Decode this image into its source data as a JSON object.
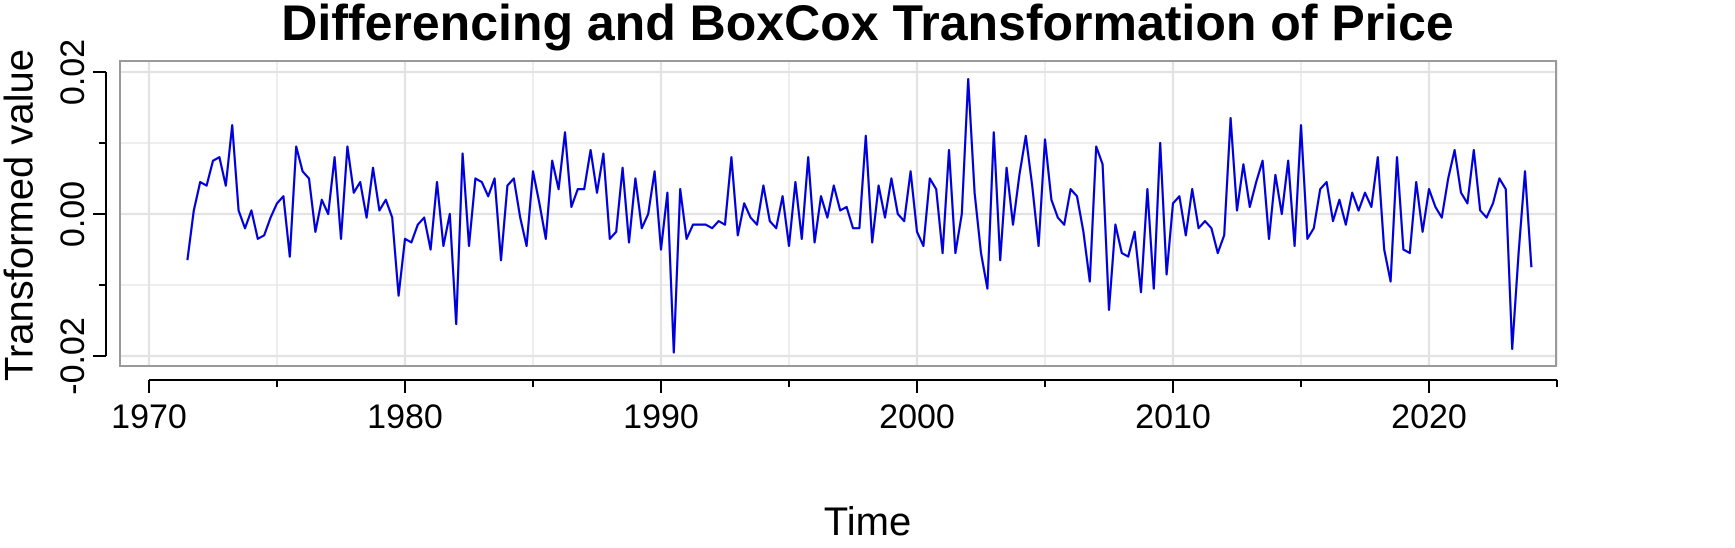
{
  "chart_data": {
    "type": "line",
    "title": "Differencing and BoxCox Transformation of Price",
    "xlabel": "Time",
    "ylabel": "Transformed value",
    "xlim": [
      1970.5,
      2025.75
    ],
    "ylim": [
      -0.02,
      0.02
    ],
    "x_ticks": [
      1970,
      1980,
      1990,
      2000,
      2010,
      2020
    ],
    "x_tick_labels": [
      "1970",
      "1980",
      "1990",
      "2000",
      "2010",
      "2020"
    ],
    "y_ticks": [
      -0.02,
      0.0,
      0.02
    ],
    "y_tick_labels": [
      "-0.02",
      "0.00",
      "0.02"
    ],
    "grid": true,
    "line_color": "#0000dd",
    "grid_color": "#e3e3e3",
    "panel_border_color": "#9a9a9a",
    "start": 1971.5,
    "frequency": 4,
    "series": [
      {
        "values": [
          -0.0065,
          0.0005,
          0.0045,
          0.004,
          0.0075,
          0.008,
          0.004,
          0.0125,
          0.0005,
          -0.002,
          0.0005,
          -0.0035,
          -0.003,
          -0.0005,
          0.0015,
          0.0025,
          -0.006,
          0.0095,
          0.006,
          0.005,
          -0.0025,
          0.002,
          0.0,
          0.008,
          -0.0035,
          0.0095,
          0.003,
          0.0045,
          -0.0005,
          0.0065,
          0.0005,
          0.002,
          -0.0005,
          -0.0115,
          -0.0035,
          -0.004,
          -0.0015,
          -0.0005,
          -0.005,
          0.0045,
          -0.0045,
          0.0,
          -0.0155,
          0.0085,
          -0.0045,
          0.005,
          0.0045,
          0.0025,
          0.005,
          -0.0065,
          0.004,
          0.005,
          -0.0005,
          -0.0045,
          0.006,
          0.0015,
          -0.0035,
          0.0075,
          0.0035,
          0.0115,
          0.001,
          0.0035,
          0.0035,
          0.009,
          0.003,
          0.0085,
          -0.0035,
          -0.0025,
          0.0065,
          -0.004,
          0.005,
          -0.002,
          0.0,
          0.006,
          -0.005,
          0.003,
          -0.0195,
          0.0035,
          -0.0035,
          -0.0015,
          -0.0015,
          -0.0015,
          -0.002,
          -0.001,
          -0.0015,
          0.008,
          -0.003,
          0.0015,
          -0.0005,
          -0.0015,
          0.004,
          -0.001,
          -0.002,
          0.0025,
          -0.0045,
          0.0045,
          -0.0035,
          0.008,
          -0.004,
          0.0025,
          -0.0005,
          0.004,
          0.0005,
          0.001,
          -0.002,
          -0.002,
          0.011,
          -0.004,
          0.004,
          -0.0005,
          0.005,
          0.0,
          -0.001,
          0.006,
          -0.0025,
          -0.0045,
          0.005,
          0.0035,
          -0.0055,
          0.009,
          -0.0055,
          0.0,
          0.019,
          0.003,
          -0.0055,
          -0.0105,
          0.0115,
          -0.0065,
          0.0065,
          -0.0015,
          0.0055,
          0.011,
          0.004,
          -0.0045,
          0.0105,
          0.002,
          -0.0005,
          -0.0015,
          0.0035,
          0.0025,
          -0.0025,
          -0.0095,
          0.0095,
          0.007,
          -0.0135,
          -0.0015,
          -0.0055,
          -0.006,
          -0.0025,
          -0.011,
          0.0035,
          -0.0105,
          0.01,
          -0.0085,
          0.0015,
          0.0025,
          -0.003,
          0.0035,
          -0.002,
          -0.001,
          -0.002,
          -0.0055,
          -0.003,
          0.0135,
          0.0005,
          0.007,
          0.001,
          0.0045,
          0.0075,
          -0.0035,
          0.0055,
          0.0,
          0.0075,
          -0.0045,
          0.0125,
          -0.0035,
          -0.002,
          0.0035,
          0.0045,
          -0.001,
          0.002,
          -0.0015,
          0.003,
          0.0005,
          0.003,
          0.001,
          0.008,
          -0.005,
          -0.0095,
          0.008,
          -0.005,
          -0.0055,
          0.0045,
          -0.0025,
          0.0035,
          0.001,
          -0.0005,
          0.005,
          0.009,
          0.003,
          0.0015,
          0.009,
          0.0005,
          -0.0005,
          0.0015,
          0.005,
          0.0035,
          -0.019,
          -0.0055,
          0.006,
          -0.0075
        ]
      }
    ]
  }
}
